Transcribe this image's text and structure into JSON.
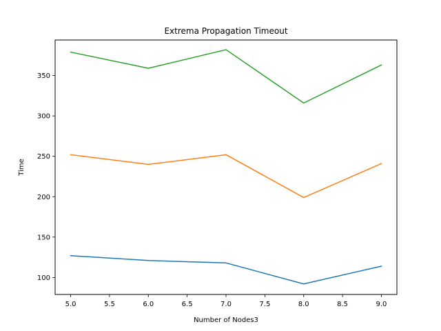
{
  "chart_data": {
    "type": "line",
    "title": "Extrema Propagation Timeout",
    "xlabel": "Number of Nodes3",
    "ylabel": "Time",
    "x": [
      5,
      6,
      7,
      8,
      9
    ],
    "xlim": [
      4.8,
      9.2
    ],
    "ylim": [
      79,
      394
    ],
    "xticks": [
      5.0,
      5.5,
      6.0,
      6.5,
      7.0,
      7.5,
      8.0,
      8.5,
      9.0
    ],
    "xtick_labels": [
      "5.0",
      "5.5",
      "6.0",
      "6.5",
      "7.0",
      "7.5",
      "8.0",
      "8.5",
      "9.0"
    ],
    "yticks": [
      100,
      150,
      200,
      250,
      300,
      350
    ],
    "ytick_labels": [
      "100",
      "150",
      "200",
      "250",
      "300",
      "350"
    ],
    "grid": false,
    "series": [
      {
        "values": [
          127,
          121,
          118,
          92,
          114
        ],
        "color": "#1f77b4"
      },
      {
        "values": [
          252,
          240,
          252,
          199,
          241
        ],
        "color": "#ff7f0e"
      },
      {
        "values": [
          379,
          359,
          382,
          316,
          363
        ],
        "color": "#2ca02c"
      }
    ]
  }
}
